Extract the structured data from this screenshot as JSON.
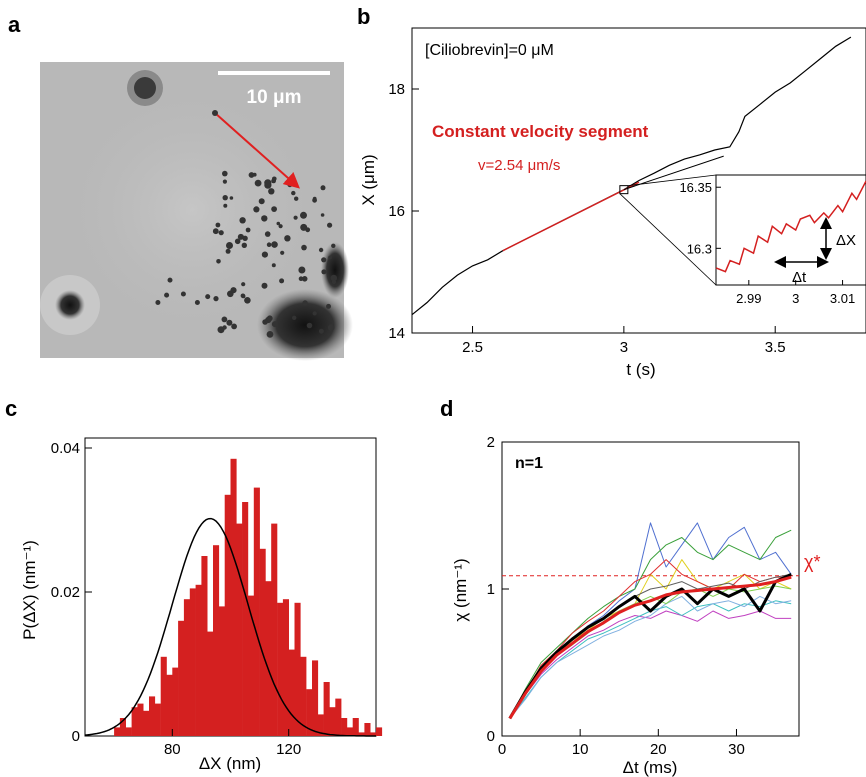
{
  "panels": {
    "a": {
      "label": "a",
      "scalebar_text": "10 μm"
    }
  },
  "chart_data": [
    {
      "panel": "b",
      "label": "b",
      "type": "line",
      "title": "",
      "annotation_condition": "[Ciliobrevin]=0 μM",
      "annotation_segment": "Constant velocity segment",
      "annotation_velocity": "v=2.54 μm/s",
      "xlabel": "t (s)",
      "ylabel": "X (μm)",
      "xlim": [
        2.3,
        3.8
      ],
      "ylim": [
        14,
        19
      ],
      "xticks": [
        "2.5",
        "3",
        "3.5"
      ],
      "xtick_values": [
        2.5,
        3,
        3.5
      ],
      "yticks": [
        "14",
        "16",
        "18"
      ],
      "ytick_values": [
        14,
        16,
        18
      ],
      "colors": {
        "trace": "#000000",
        "segment": "#d42020"
      },
      "series": [
        {
          "x": [
            2.3,
            2.35,
            2.4,
            2.45,
            2.5,
            2.55,
            2.6,
            2.7,
            2.8,
            2.9,
            3.0,
            3.05,
            3.1,
            3.15,
            3.2,
            3.25,
            3.3,
            3.35,
            3.38,
            3.4,
            3.45,
            3.5,
            3.55,
            3.6,
            3.65,
            3.7,
            3.75
          ],
          "y": [
            14.3,
            14.5,
            14.75,
            14.95,
            15.1,
            15.2,
            15.35,
            15.6,
            15.85,
            16.1,
            16.35,
            16.5,
            16.62,
            16.75,
            16.85,
            16.92,
            17.0,
            17.05,
            17.3,
            17.55,
            17.75,
            17.95,
            18.1,
            18.3,
            18.5,
            18.7,
            18.85
          ]
        }
      ],
      "segment": {
        "x": [
          2.6,
          3.05
        ],
        "y": [
          15.35,
          16.47
        ]
      },
      "fit_line": {
        "x": [
          3.0,
          3.33
        ],
        "y": [
          16.35,
          16.9
        ]
      },
      "inset": {
        "xlim": [
          2.983,
          3.015
        ],
        "ylim": [
          16.27,
          16.36
        ],
        "xticks": [
          "2.99",
          "3",
          "3.01"
        ],
        "xtick_values": [
          2.99,
          3.0,
          3.01
        ],
        "yticks": [
          "16.3",
          "16.35"
        ],
        "ytick_values": [
          16.3,
          16.35
        ],
        "dx_label": "ΔX",
        "dt_label": "Δt",
        "x": [
          2.983,
          2.985,
          2.986,
          2.988,
          2.989,
          2.991,
          2.992,
          2.994,
          2.995,
          2.997,
          2.998,
          3.0,
          3.001,
          3.003,
          3.004,
          3.006,
          3.007,
          3.009,
          3.01,
          3.012,
          3.013,
          3.015
        ],
        "y": [
          16.284,
          16.281,
          16.29,
          16.287,
          16.3,
          16.296,
          16.31,
          16.305,
          16.318,
          16.312,
          16.32,
          16.315,
          16.324,
          16.327,
          16.321,
          16.329,
          16.325,
          16.335,
          16.33,
          16.345,
          16.34,
          16.355
        ]
      }
    },
    {
      "panel": "c",
      "label": "c",
      "type": "bar",
      "title": "",
      "xlabel": "ΔX (nm)",
      "ylabel": "P(ΔX) (nm⁻¹)",
      "xlim": [
        50,
        150
      ],
      "ylim": [
        0,
        0.04
      ],
      "xticks": [
        "80",
        "120"
      ],
      "xtick_values": [
        80,
        120
      ],
      "yticks": [
        "0",
        "0.02",
        "0.04"
      ],
      "ytick_values": [
        0,
        0.02,
        0.04
      ],
      "bin_width": 2,
      "bin_start": 60,
      "colors": {
        "bars": "#d42020",
        "fit": "#000000"
      },
      "values": [
        0.0012,
        0.0025,
        0.0012,
        0.004,
        0.0045,
        0.0035,
        0.0055,
        0.0045,
        0.011,
        0.0085,
        0.0095,
        0.016,
        0.019,
        0.0205,
        0.021,
        0.025,
        0.0145,
        0.0265,
        0.018,
        0.0335,
        0.0385,
        0.0295,
        0.0325,
        0.0195,
        0.0345,
        0.026,
        0.0215,
        0.0295,
        0.0185,
        0.019,
        0.012,
        0.0185,
        0.011,
        0.0065,
        0.0105,
        0.003,
        0.0075,
        0.004,
        0.0052,
        0.0025,
        0.0012,
        0.0025,
        0.0005,
        0.0018,
        0.0005,
        0.0012
      ],
      "gaussian": {
        "mean": 93,
        "sigma": 13,
        "peak": 0.0302
      }
    },
    {
      "panel": "d",
      "label": "d",
      "type": "line",
      "title": "",
      "annotation_n": "n=1",
      "annotation_chi_star": "χ*",
      "chi_star": 1.09,
      "xlabel": "Δt (ms)",
      "ylabel": "χ (nm⁻¹)",
      "xlim": [
        0,
        38
      ],
      "ylim": [
        0,
        2
      ],
      "xticks": [
        "0",
        "10",
        "20",
        "30"
      ],
      "xtick_values": [
        0,
        10,
        20,
        30
      ],
      "yticks": [
        "0",
        "1",
        "2"
      ],
      "ytick_values": [
        0,
        1,
        2
      ],
      "x": [
        1,
        3,
        5,
        7,
        9,
        11,
        13,
        15,
        17,
        19,
        21,
        23,
        25,
        27,
        29,
        31,
        33,
        35,
        37
      ],
      "series": [
        {
          "color": "#5070d0",
          "values": [
            0.12,
            0.3,
            0.45,
            0.58,
            0.65,
            0.75,
            0.82,
            0.92,
            1.0,
            1.45,
            1.15,
            1.3,
            1.45,
            1.2,
            1.35,
            1.42,
            1.2,
            1.25,
            1.1
          ]
        },
        {
          "color": "#3aa03a",
          "values": [
            0.12,
            0.32,
            0.5,
            0.6,
            0.7,
            0.8,
            0.88,
            0.95,
            1.0,
            1.2,
            1.3,
            1.35,
            1.25,
            1.2,
            1.3,
            1.25,
            1.2,
            1.35,
            1.4
          ]
        },
        {
          "color": "#e0d020",
          "values": [
            0.12,
            0.3,
            0.45,
            0.55,
            0.65,
            0.72,
            0.8,
            0.85,
            0.9,
            1.1,
            1.0,
            1.2,
            1.05,
            1.0,
            1.05,
            1.1,
            1.0,
            1.05,
            1.0
          ]
        },
        {
          "color": "#e03030",
          "values": [
            0.12,
            0.3,
            0.48,
            0.58,
            0.7,
            0.78,
            0.85,
            0.95,
            1.05,
            1.1,
            1.2,
            1.1,
            1.05,
            1.0,
            1.0,
            1.1,
            1.05,
            1.08,
            1.08
          ]
        },
        {
          "color": "#c040c0",
          "values": [
            0.12,
            0.28,
            0.42,
            0.52,
            0.6,
            0.68,
            0.72,
            0.78,
            0.82,
            0.8,
            0.85,
            0.82,
            0.78,
            0.85,
            0.8,
            0.82,
            0.85,
            0.8,
            0.8
          ]
        },
        {
          "color": "#40c0c0",
          "values": [
            0.12,
            0.26,
            0.4,
            0.5,
            0.58,
            0.66,
            0.7,
            0.75,
            0.8,
            0.85,
            0.88,
            0.82,
            0.88,
            0.9,
            0.85,
            0.9,
            0.88,
            0.92,
            0.9
          ]
        },
        {
          "color": "#80b0e0",
          "values": [
            0.12,
            0.25,
            0.4,
            0.5,
            0.56,
            0.62,
            0.68,
            0.72,
            0.78,
            0.82,
            0.9,
            0.95,
            0.85,
            0.9,
            0.92,
            0.88,
            0.95,
            0.9,
            0.92
          ]
        },
        {
          "color": "#80d050",
          "values": [
            0.12,
            0.3,
            0.45,
            0.55,
            0.62,
            0.7,
            0.78,
            0.85,
            0.9,
            0.95,
            0.9,
            0.98,
            1.0,
            0.95,
            1.0,
            0.98,
            1.0,
            1.02,
            1.0
          ]
        },
        {
          "color": "#606060",
          "values": [
            0.12,
            0.3,
            0.46,
            0.57,
            0.66,
            0.74,
            0.8,
            0.88,
            0.95,
            1.0,
            1.02,
            1.05,
            1.0,
            1.02,
            1.04,
            1.0,
            1.05,
            1.08,
            1.1
          ]
        },
        {
          "color": "#000000",
          "width": 3,
          "values": [
            0.12,
            0.3,
            0.46,
            0.57,
            0.66,
            0.74,
            0.8,
            0.88,
            0.95,
            0.85,
            0.95,
            1.0,
            0.9,
            1.0,
            0.95,
            1.0,
            0.85,
            1.05,
            1.1
          ]
        },
        {
          "color": "#e02020",
          "width": 3,
          "values": [
            0.12,
            0.29,
            0.44,
            0.55,
            0.63,
            0.71,
            0.77,
            0.84,
            0.89,
            0.92,
            0.96,
            0.98,
            0.99,
            1.0,
            1.01,
            1.02,
            1.03,
            1.05,
            1.08
          ]
        }
      ]
    }
  ]
}
